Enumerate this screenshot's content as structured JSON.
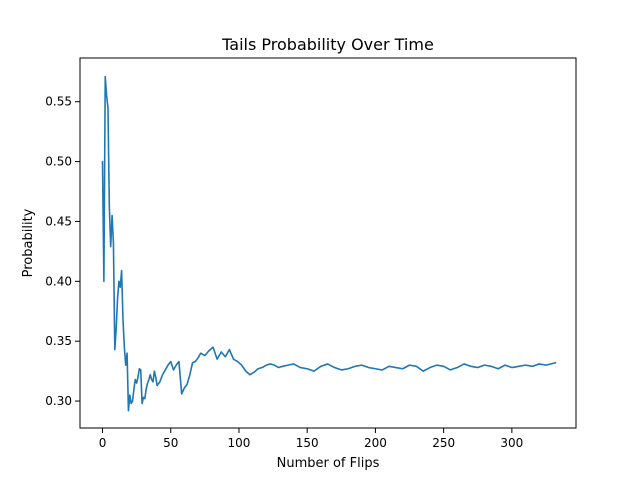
{
  "chart_data": {
    "type": "line",
    "title": "Tails Probability Over Time",
    "xlabel": "Number of Flips",
    "ylabel": "Probability",
    "xlim": [
      -16.5,
      347
    ],
    "ylim": [
      0.2775,
      0.5865
    ],
    "xticks": [
      0,
      50,
      100,
      150,
      200,
      250,
      300
    ],
    "yticks": [
      0.3,
      0.35,
      0.4,
      0.45,
      0.5,
      0.55
    ],
    "ytick_labels": [
      "0.30",
      "0.35",
      "0.40",
      "0.45",
      "0.50",
      "0.55"
    ],
    "grid": false,
    "series": [
      {
        "color": "#1f77b4",
        "x": [
          0,
          1,
          2,
          3,
          4,
          5,
          6,
          7,
          8,
          9,
          10,
          11,
          12,
          13,
          14,
          15,
          16,
          17,
          18,
          19,
          20,
          21,
          22,
          23,
          24,
          25,
          26,
          27,
          28,
          29,
          30,
          31,
          32,
          33,
          34,
          35,
          36,
          37,
          38,
          39,
          40,
          42,
          44,
          46,
          48,
          50,
          52,
          54,
          56,
          58,
          60,
          62,
          63,
          64,
          66,
          68,
          70,
          72,
          75,
          78,
          81,
          84,
          87,
          90,
          93,
          96,
          99,
          102,
          105,
          108,
          111,
          114,
          117,
          120,
          123,
          126,
          129,
          132,
          136,
          140,
          145,
          150,
          155,
          160,
          165,
          170,
          175,
          180,
          185,
          190,
          195,
          200,
          205,
          210,
          215,
          220,
          225,
          230,
          235,
          240,
          245,
          250,
          255,
          260,
          265,
          270,
          275,
          280,
          285,
          290,
          295,
          300,
          305,
          310,
          315,
          320,
          325,
          332
        ],
        "y": [
          0.5,
          0.4,
          0.571,
          0.555,
          0.545,
          0.462,
          0.429,
          0.455,
          0.432,
          0.343,
          0.36,
          0.385,
          0.4,
          0.395,
          0.409,
          0.368,
          0.345,
          0.33,
          0.34,
          0.292,
          0.305,
          0.298,
          0.3,
          0.31,
          0.318,
          0.315,
          0.32,
          0.327,
          0.326,
          0.298,
          0.303,
          0.302,
          0.31,
          0.315,
          0.318,
          0.322,
          0.318,
          0.316,
          0.325,
          0.32,
          0.313,
          0.316,
          0.322,
          0.326,
          0.33,
          0.333,
          0.326,
          0.33,
          0.333,
          0.306,
          0.311,
          0.314,
          0.318,
          0.322,
          0.332,
          0.333,
          0.336,
          0.34,
          0.338,
          0.342,
          0.345,
          0.335,
          0.341,
          0.337,
          0.343,
          0.335,
          0.333,
          0.33,
          0.325,
          0.322,
          0.324,
          0.327,
          0.328,
          0.33,
          0.331,
          0.33,
          0.328,
          0.329,
          0.33,
          0.331,
          0.328,
          0.327,
          0.325,
          0.329,
          0.331,
          0.328,
          0.326,
          0.327,
          0.329,
          0.33,
          0.328,
          0.327,
          0.326,
          0.329,
          0.328,
          0.327,
          0.33,
          0.329,
          0.325,
          0.328,
          0.33,
          0.329,
          0.326,
          0.328,
          0.331,
          0.329,
          0.328,
          0.33,
          0.329,
          0.327,
          0.33,
          0.328,
          0.329,
          0.33,
          0.329,
          0.331,
          0.33,
          0.332
        ]
      }
    ]
  }
}
